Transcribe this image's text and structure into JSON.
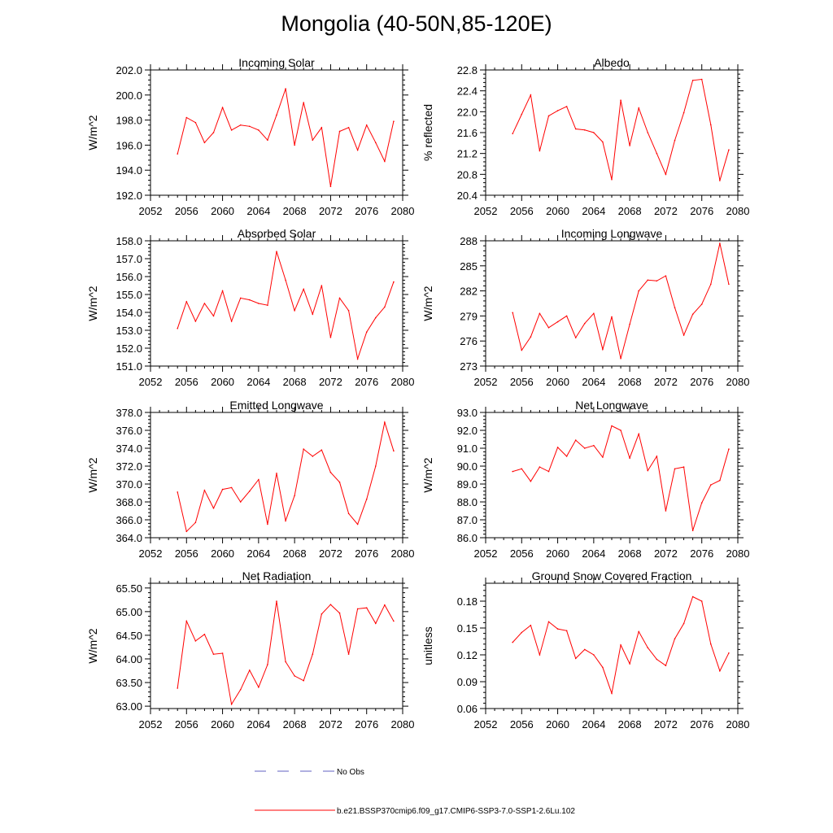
{
  "title": "Mongolia (40-50N,85-120E)",
  "colors": {
    "model": "#ff0000",
    "obs": "#6060c0",
    "axis": "#000000"
  },
  "legend": {
    "obs_label": "No Obs",
    "model_label": "b.e21.BSSP370cmip6.f09_g17.CMIP6-SSP3-7.0-SSP1-2.6Lu.102"
  },
  "chart_data": [
    {
      "type": "line",
      "title": "Incoming Solar",
      "ylabel": "W/m^2",
      "xlim": [
        2052,
        2080
      ],
      "ylim": [
        192.0,
        202.0
      ],
      "x_ticks": [
        2052,
        2056,
        2060,
        2064,
        2068,
        2072,
        2076,
        2080
      ],
      "y_ticks": [
        "192.0",
        "194.0",
        "196.0",
        "198.0",
        "200.0",
        "202.0"
      ],
      "series": [
        {
          "x": [
            2055,
            2056,
            2057,
            2058,
            2059,
            2060,
            2061,
            2062,
            2063,
            2064,
            2065,
            2066,
            2067,
            2068,
            2069,
            2070,
            2071,
            2072,
            2073,
            2074,
            2075,
            2076,
            2077,
            2078,
            2079
          ],
          "values": [
            195.3,
            198.2,
            197.8,
            196.2,
            197.0,
            199.0,
            197.2,
            197.6,
            197.5,
            197.2,
            196.4,
            198.4,
            200.5,
            196.0,
            199.4,
            196.4,
            197.4,
            192.7,
            197.1,
            197.4,
            195.6,
            197.6,
            196.2,
            194.7,
            197.9
          ]
        }
      ]
    },
    {
      "type": "line",
      "title": "Albedo",
      "ylabel": "% reflected",
      "xlim": [
        2052,
        2080
      ],
      "ylim": [
        20.4,
        22.8
      ],
      "x_ticks": [
        2052,
        2056,
        2060,
        2064,
        2068,
        2072,
        2076,
        2080
      ],
      "y_ticks": [
        "20.4",
        "20.8",
        "21.2",
        "21.6",
        "22.0",
        "22.4",
        "22.8"
      ],
      "series": [
        {
          "x": [
            2055,
            2056,
            2057,
            2058,
            2059,
            2060,
            2061,
            2062,
            2063,
            2064,
            2065,
            2066,
            2067,
            2068,
            2069,
            2070,
            2071,
            2072,
            2073,
            2074,
            2075,
            2076,
            2077,
            2078,
            2079
          ],
          "values": [
            21.58,
            21.95,
            22.32,
            21.25,
            21.92,
            22.02,
            22.1,
            21.67,
            21.65,
            21.6,
            21.42,
            20.7,
            22.22,
            21.35,
            22.07,
            21.6,
            21.2,
            20.8,
            21.45,
            21.98,
            22.6,
            22.62,
            21.75,
            20.68,
            21.27
          ]
        }
      ]
    },
    {
      "type": "line",
      "title": "Absorbed Solar",
      "ylabel": "W/m^2",
      "xlim": [
        2052,
        2080
      ],
      "ylim": [
        151.0,
        158.0
      ],
      "x_ticks": [
        2052,
        2056,
        2060,
        2064,
        2068,
        2072,
        2076,
        2080
      ],
      "y_ticks": [
        "151.0",
        "152.0",
        "153.0",
        "154.0",
        "155.0",
        "156.0",
        "157.0",
        "158.0"
      ],
      "series": [
        {
          "x": [
            2055,
            2056,
            2057,
            2058,
            2059,
            2060,
            2061,
            2062,
            2063,
            2064,
            2065,
            2066,
            2067,
            2068,
            2069,
            2070,
            2071,
            2072,
            2073,
            2074,
            2075,
            2076,
            2077,
            2078,
            2079
          ],
          "values": [
            153.1,
            154.6,
            153.5,
            154.5,
            153.8,
            155.2,
            153.5,
            154.8,
            154.7,
            154.5,
            154.4,
            157.4,
            155.8,
            154.1,
            155.3,
            153.9,
            155.5,
            152.6,
            154.8,
            154.1,
            151.4,
            152.9,
            153.7,
            154.3,
            155.7
          ]
        }
      ]
    },
    {
      "type": "line",
      "title": "Incoming Longwave",
      "ylabel": "W/m^2",
      "xlim": [
        2052,
        2080
      ],
      "ylim": [
        273,
        288
      ],
      "x_ticks": [
        2052,
        2056,
        2060,
        2064,
        2068,
        2072,
        2076,
        2080
      ],
      "y_ticks": [
        "273",
        "276",
        "279",
        "282",
        "285",
        "288"
      ],
      "series": [
        {
          "x": [
            2055,
            2056,
            2057,
            2058,
            2059,
            2060,
            2061,
            2062,
            2063,
            2064,
            2065,
            2066,
            2067,
            2068,
            2069,
            2070,
            2071,
            2072,
            2073,
            2074,
            2075,
            2076,
            2077,
            2078,
            2079
          ],
          "values": [
            279.4,
            274.9,
            276.5,
            279.3,
            277.6,
            278.3,
            279.0,
            276.4,
            278.1,
            279.3,
            275.0,
            278.9,
            273.9,
            278.0,
            282.0,
            283.3,
            283.2,
            283.8,
            280.0,
            276.7,
            279.2,
            280.4,
            282.8,
            287.7,
            282.8
          ]
        }
      ]
    },
    {
      "type": "line",
      "title": "Emitted Longwave",
      "ylabel": "W/m^2",
      "xlim": [
        2052,
        2080
      ],
      "ylim": [
        364.0,
        378.0
      ],
      "x_ticks": [
        2052,
        2056,
        2060,
        2064,
        2068,
        2072,
        2076,
        2080
      ],
      "y_ticks": [
        "364.0",
        "366.0",
        "368.0",
        "370.0",
        "372.0",
        "374.0",
        "376.0",
        "378.0"
      ],
      "series": [
        {
          "x": [
            2055,
            2056,
            2057,
            2058,
            2059,
            2060,
            2061,
            2062,
            2063,
            2064,
            2065,
            2066,
            2067,
            2068,
            2069,
            2070,
            2071,
            2072,
            2073,
            2074,
            2075,
            2076,
            2077,
            2078,
            2079
          ],
          "values": [
            369.1,
            364.7,
            365.7,
            369.3,
            367.3,
            369.4,
            369.6,
            368.0,
            369.2,
            370.5,
            365.5,
            371.2,
            365.9,
            368.7,
            373.9,
            373.1,
            373.8,
            371.3,
            370.2,
            366.7,
            365.5,
            368.3,
            372.0,
            376.9,
            373.7
          ]
        }
      ]
    },
    {
      "type": "line",
      "title": "Net Longwave",
      "ylabel": "W/m^2",
      "xlim": [
        2052,
        2080
      ],
      "ylim": [
        86.0,
        93.0
      ],
      "x_ticks": [
        2052,
        2056,
        2060,
        2064,
        2068,
        2072,
        2076,
        2080
      ],
      "y_ticks": [
        "86.0",
        "87.0",
        "88.0",
        "89.0",
        "90.0",
        "91.0",
        "92.0",
        "93.0"
      ],
      "series": [
        {
          "x": [
            2055,
            2056,
            2057,
            2058,
            2059,
            2060,
            2061,
            2062,
            2063,
            2064,
            2065,
            2066,
            2067,
            2068,
            2069,
            2070,
            2071,
            2072,
            2073,
            2074,
            2075,
            2076,
            2077,
            2078,
            2079
          ],
          "values": [
            89.7,
            89.85,
            89.15,
            89.95,
            89.7,
            91.05,
            90.55,
            91.45,
            91.0,
            91.15,
            90.5,
            92.25,
            92.0,
            90.45,
            91.8,
            89.75,
            90.55,
            87.5,
            89.85,
            89.95,
            86.4,
            87.95,
            88.95,
            89.2,
            90.95
          ]
        }
      ]
    },
    {
      "type": "line",
      "title": "Net Radiation",
      "ylabel": "W/m^2",
      "xlim": [
        2052,
        2080
      ],
      "ylim": [
        62.95,
        65.6
      ],
      "x_ticks": [
        2052,
        2056,
        2060,
        2064,
        2068,
        2072,
        2076,
        2080
      ],
      "y_ticks": [
        "63.00",
        "63.50",
        "64.00",
        "64.50",
        "65.00",
        "65.50"
      ],
      "series": [
        {
          "x": [
            2055,
            2056,
            2057,
            2058,
            2059,
            2060,
            2061,
            2062,
            2063,
            2064,
            2065,
            2066,
            2067,
            2068,
            2069,
            2070,
            2071,
            2072,
            2073,
            2074,
            2075,
            2076,
            2077,
            2078,
            2079
          ],
          "values": [
            63.38,
            64.8,
            64.38,
            64.52,
            64.1,
            64.12,
            63.04,
            63.35,
            63.76,
            63.4,
            63.88,
            65.22,
            63.94,
            63.64,
            63.54,
            64.1,
            64.95,
            65.15,
            64.97,
            64.1,
            65.06,
            65.08,
            64.75,
            65.14,
            64.8
          ]
        }
      ]
    },
    {
      "type": "line",
      "title": "Ground Snow Covered Fraction",
      "ylabel": "unitless",
      "xlim": [
        2052,
        2080
      ],
      "ylim": [
        0.06,
        0.2
      ],
      "x_ticks": [
        2052,
        2056,
        2060,
        2064,
        2068,
        2072,
        2076,
        2080
      ],
      "y_ticks": [
        "0.06",
        "0.09",
        "0.12",
        "0.15",
        "0.18"
      ],
      "series": [
        {
          "x": [
            2055,
            2056,
            2057,
            2058,
            2059,
            2060,
            2061,
            2062,
            2063,
            2064,
            2065,
            2066,
            2067,
            2068,
            2069,
            2070,
            2071,
            2072,
            2073,
            2074,
            2075,
            2076,
            2077,
            2078,
            2079
          ],
          "values": [
            0.134,
            0.145,
            0.153,
            0.12,
            0.157,
            0.149,
            0.147,
            0.116,
            0.126,
            0.12,
            0.106,
            0.077,
            0.131,
            0.11,
            0.146,
            0.128,
            0.115,
            0.108,
            0.138,
            0.155,
            0.185,
            0.18,
            0.132,
            0.102,
            0.122
          ]
        }
      ]
    }
  ]
}
